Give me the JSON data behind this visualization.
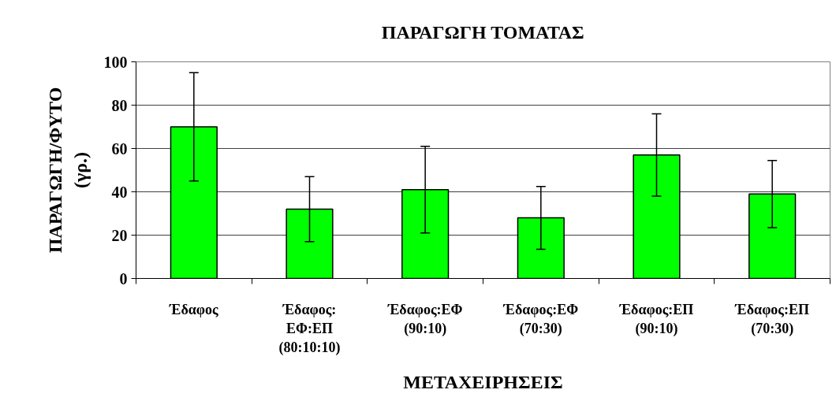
{
  "chart_data": {
    "type": "bar",
    "title": "ΠΑΡΑΓΩΓΗ ΤΟΜΑΤΑΣ",
    "xlabel": "ΜΕΤΑΧΕΙΡΗΣΕΙΣ",
    "ylabel": "ΠΑΡΑΓΩΓΗ/ΦΥΤΟ (γρ.)",
    "categories": [
      "Έδαφος",
      "Έδαφος: ΕΦ:ΕΠ (80:10:10)",
      "Έδαφος:ΕΦ (90:10)",
      "Έδαφος:ΕΦ (70:30)",
      "Έδαφος:ΕΠ (90:10)",
      "Έδαφος:ΕΠ (70:30)"
    ],
    "values": [
      70,
      32,
      41,
      28,
      57,
      39
    ],
    "errors": [
      25,
      15,
      20,
      14.5,
      19,
      15.5
    ],
    "color": "#00ff00",
    "ylim": [
      0,
      100
    ],
    "yticks": [
      0,
      20,
      40,
      60,
      80,
      100
    ],
    "grid": "y"
  }
}
